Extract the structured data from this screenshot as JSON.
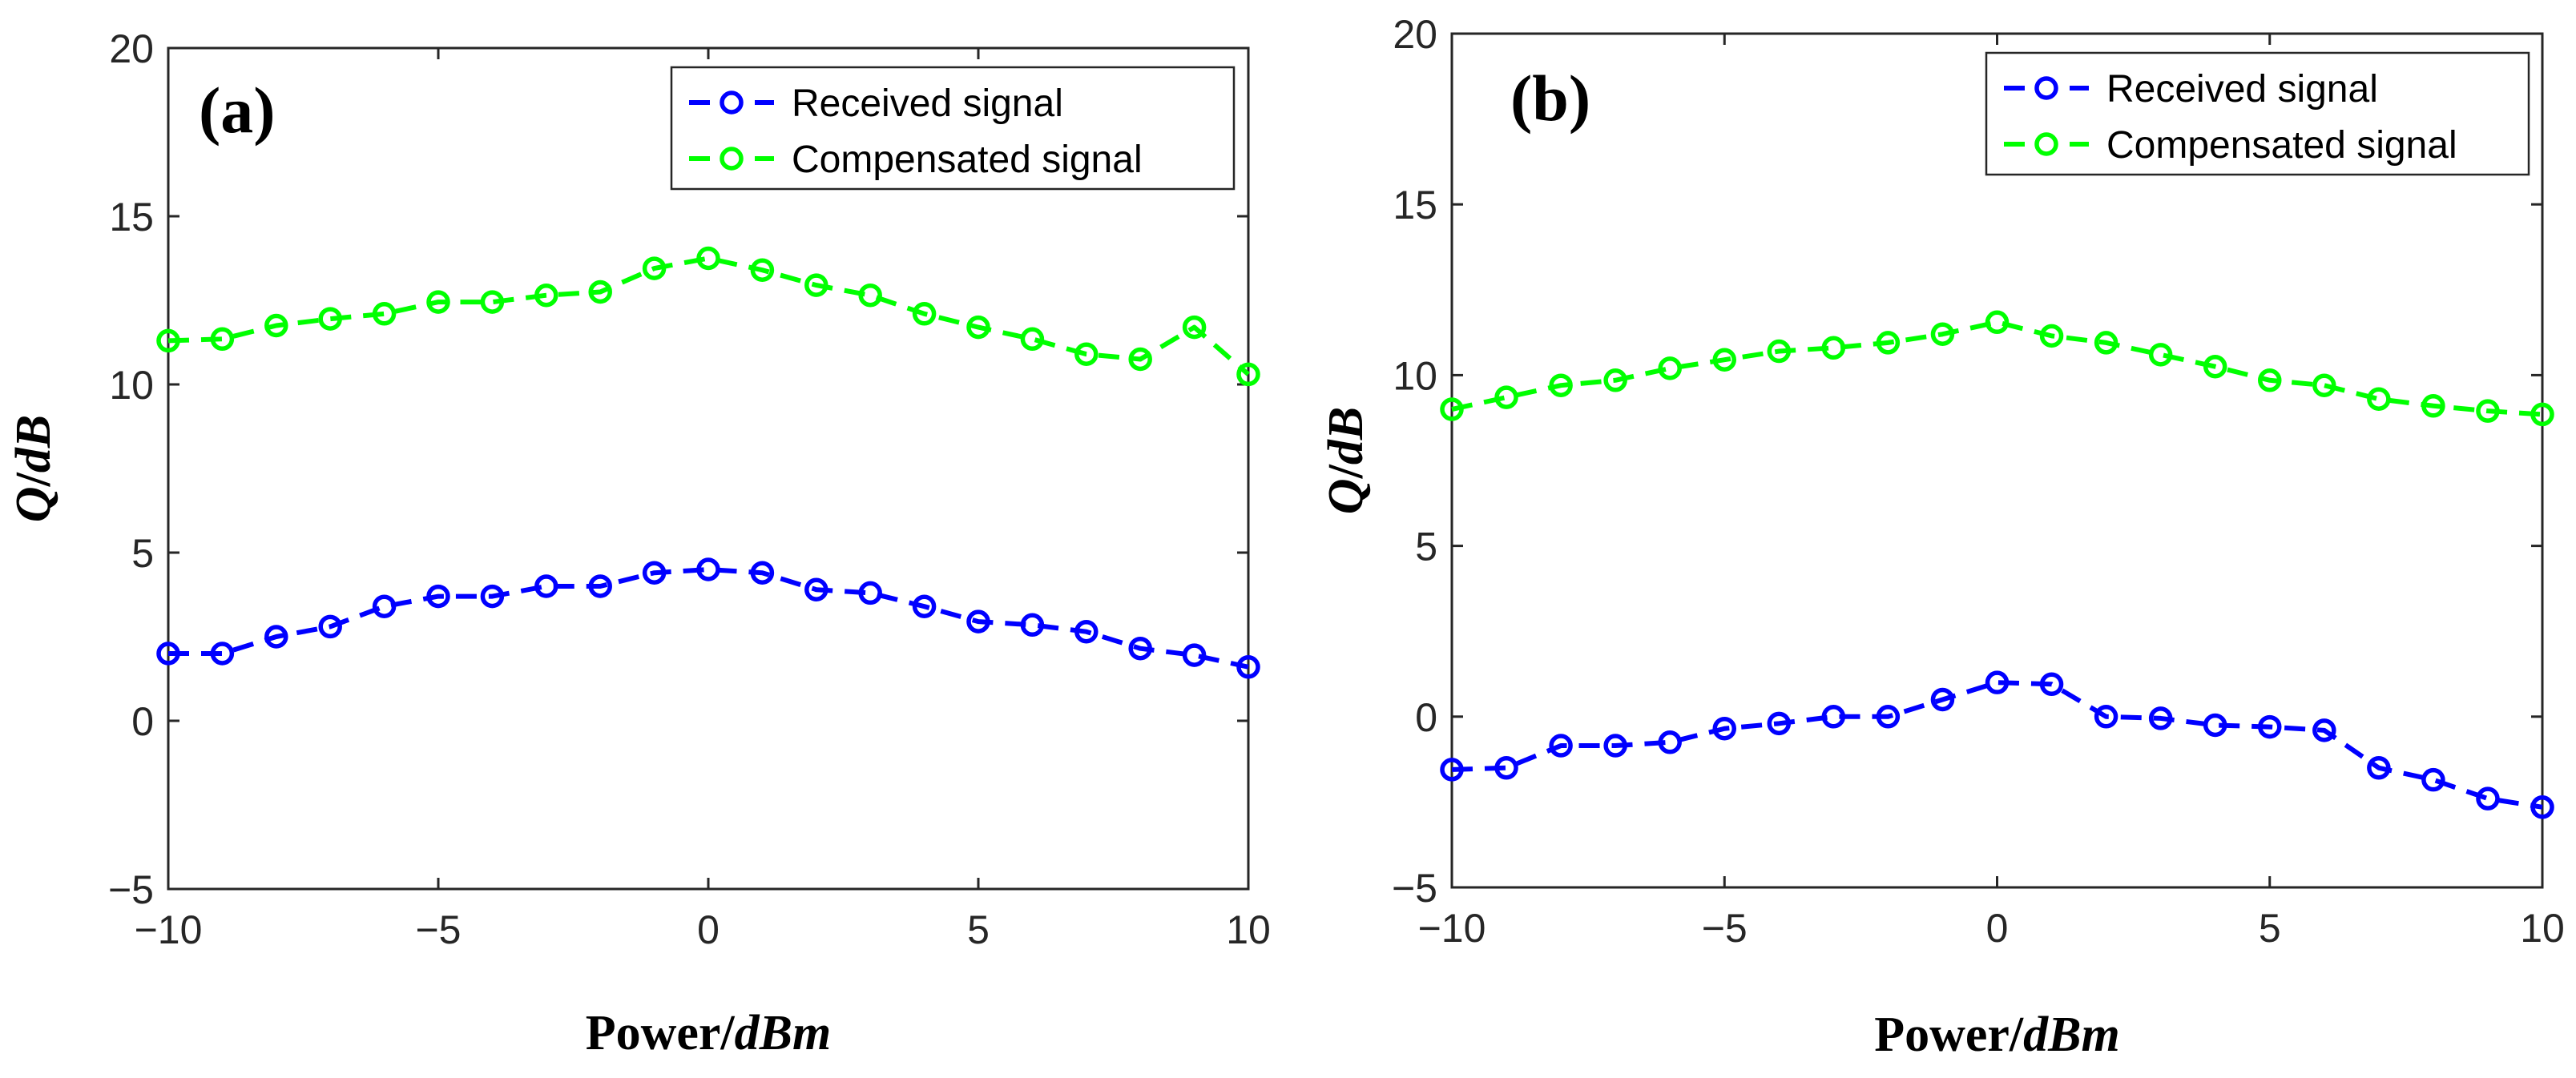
{
  "chart_data": [
    {
      "type": "line",
      "panel_label": "(a)",
      "xlabel_main": "Power",
      "xlabel_unit": "dBm",
      "ylabel_main": "Q",
      "ylabel_unit": "dB",
      "xlim": [
        -10,
        10
      ],
      "ylim": [
        -5,
        20
      ],
      "xticks": [
        -10,
        -5,
        0,
        5,
        10
      ],
      "yticks": [
        -5,
        0,
        5,
        10,
        15,
        20
      ],
      "xtick_labels": [
        "−10",
        "−5",
        "0",
        "5",
        "10"
      ],
      "ytick_labels": [
        "−5",
        "0",
        "5",
        "10",
        "15",
        "20"
      ],
      "legend_location": "top-right",
      "x": [
        -10,
        -9,
        -8,
        -7,
        -6,
        -5,
        -4,
        -3,
        -2,
        -1,
        0,
        1,
        2,
        3,
        4,
        5,
        6,
        7,
        8,
        9,
        10
      ],
      "series": [
        {
          "name": "Received signal",
          "color": "#0000ff",
          "values": [
            2.0,
            2.0,
            2.5,
            2.8,
            3.4,
            3.7,
            3.7,
            4.0,
            4.0,
            4.4,
            4.5,
            4.4,
            3.9,
            3.8,
            3.4,
            2.95,
            2.85,
            2.65,
            2.15,
            1.95,
            1.6
          ]
        },
        {
          "name": "Compensated signal",
          "color": "#00ff00",
          "values": [
            11.3,
            11.35,
            11.75,
            11.95,
            12.1,
            12.45,
            12.45,
            12.65,
            12.75,
            13.45,
            13.75,
            13.4,
            12.95,
            12.65,
            12.1,
            11.7,
            11.35,
            10.9,
            10.75,
            11.7,
            10.3
          ]
        }
      ]
    },
    {
      "type": "line",
      "panel_label": "(b)",
      "xlabel_main": "Power",
      "xlabel_unit": "dBm",
      "ylabel_main": "Q",
      "ylabel_unit": "dB",
      "xlim": [
        -10,
        10
      ],
      "ylim": [
        -5,
        20
      ],
      "xticks": [
        -10,
        -5,
        0,
        5,
        10
      ],
      "yticks": [
        -5,
        0,
        5,
        10,
        15,
        20
      ],
      "xtick_labels": [
        "−10",
        "−5",
        "0",
        "5",
        "10"
      ],
      "ytick_labels": [
        "−5",
        "0",
        "5",
        "10",
        "15",
        "20"
      ],
      "legend_location": "top-right",
      "x": [
        -10,
        -9,
        -8,
        -7,
        -6,
        -5,
        -4,
        -3,
        -2,
        -1,
        0,
        1,
        2,
        3,
        4,
        5,
        6,
        7,
        8,
        9,
        10
      ],
      "series": [
        {
          "name": "Received signal",
          "color": "#0000ff",
          "values": [
            -1.55,
            -1.5,
            -0.85,
            -0.85,
            -0.75,
            -0.35,
            -0.2,
            0.0,
            0.0,
            0.5,
            1.0,
            0.95,
            0.0,
            -0.05,
            -0.25,
            -0.3,
            -0.4,
            -1.5,
            -1.85,
            -2.4,
            -2.65
          ]
        },
        {
          "name": "Compensated signal",
          "color": "#00ff00",
          "values": [
            9.0,
            9.35,
            9.7,
            9.85,
            10.2,
            10.45,
            10.7,
            10.8,
            10.95,
            11.2,
            11.55,
            11.15,
            10.95,
            10.6,
            10.25,
            9.85,
            9.7,
            9.3,
            9.1,
            8.95,
            8.85
          ]
        }
      ]
    }
  ]
}
